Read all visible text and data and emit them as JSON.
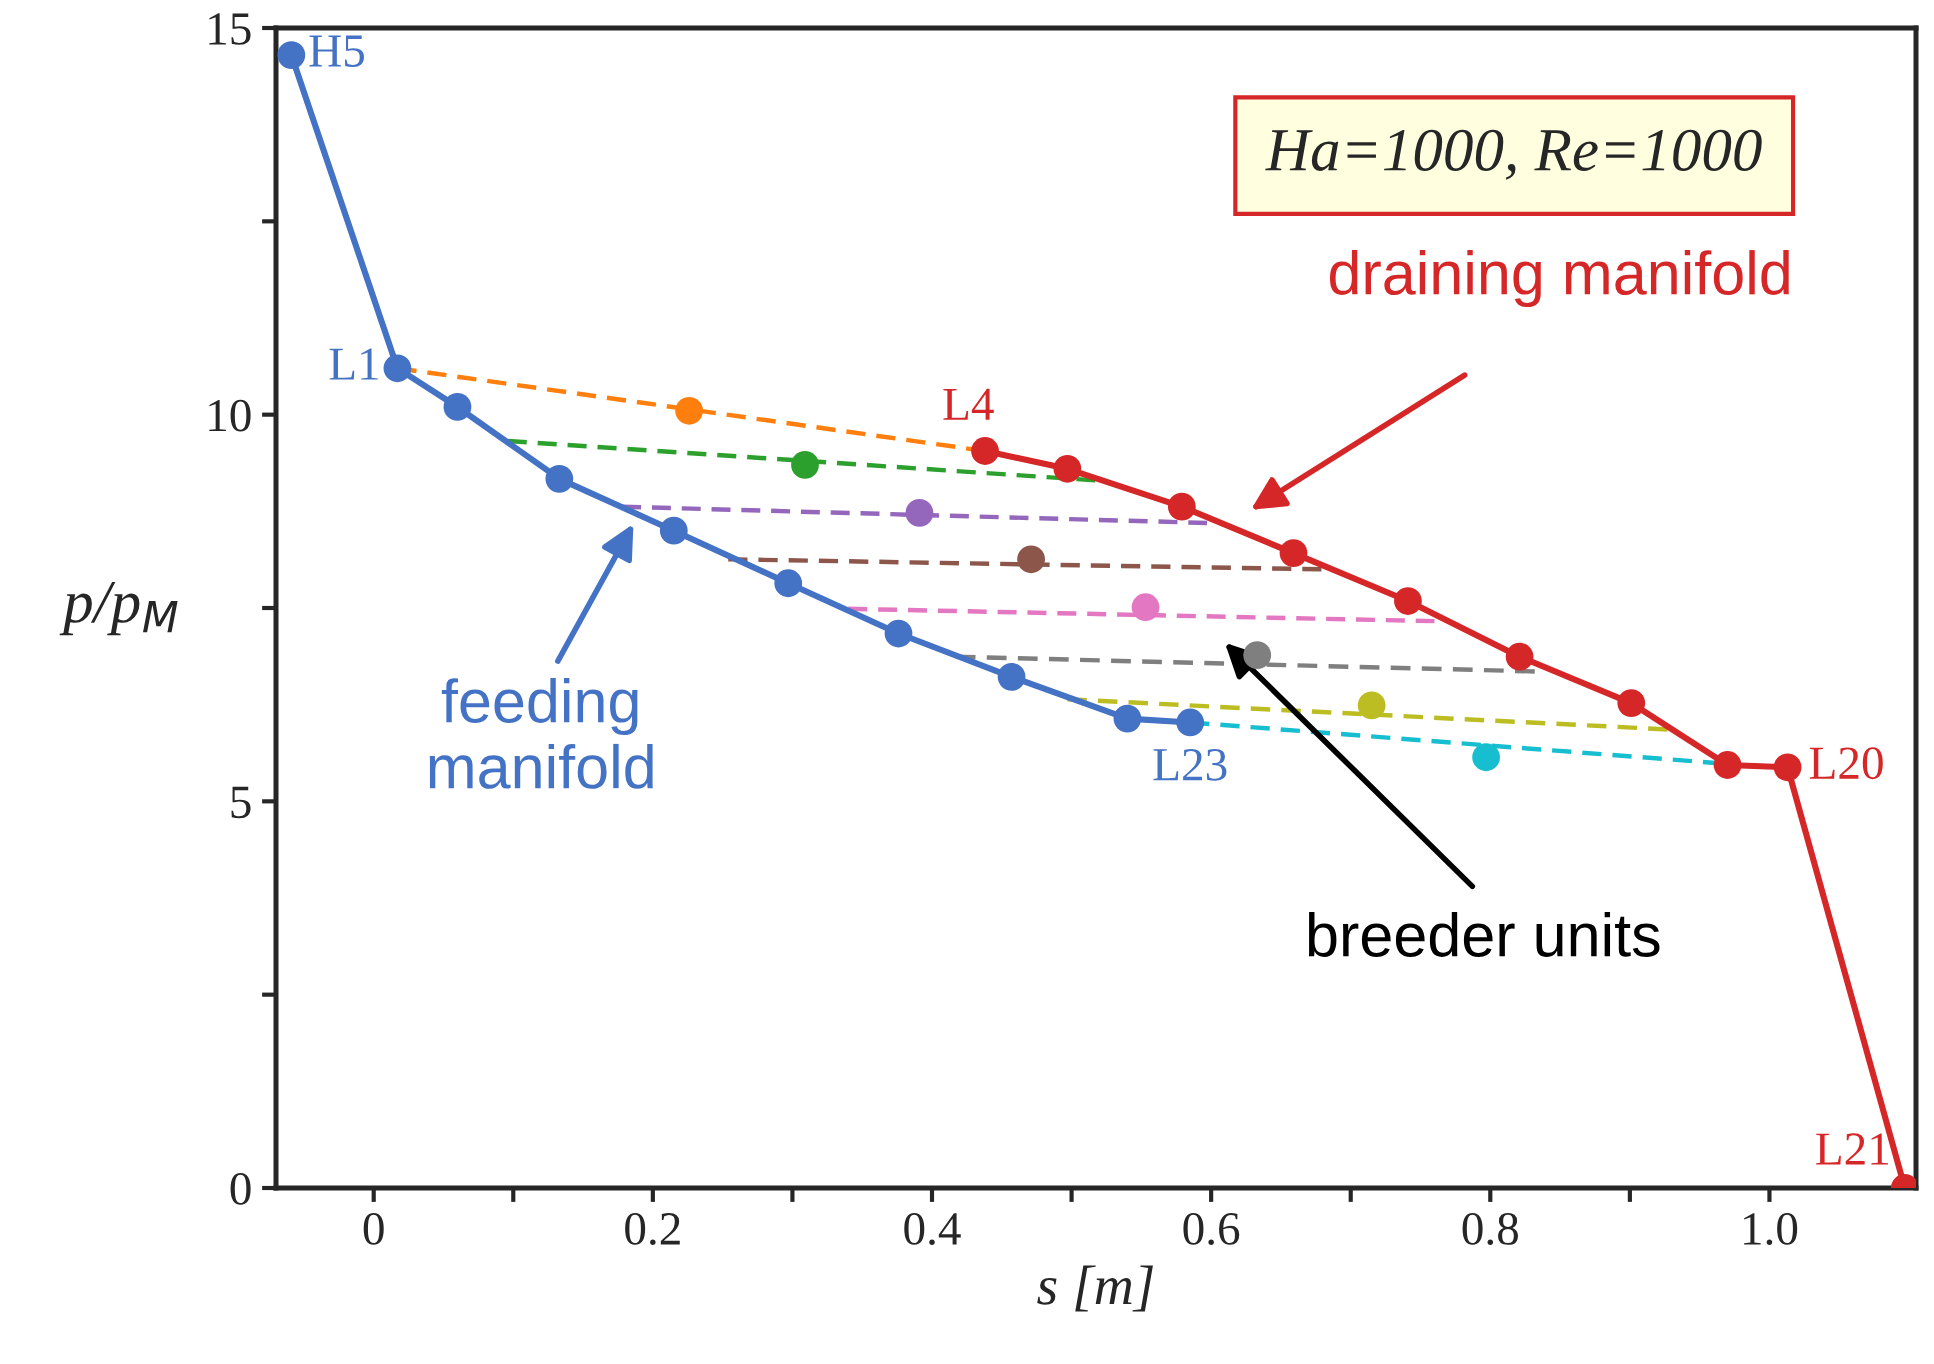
{
  "chart_data": {
    "type": "line",
    "xlabel": "s [m]",
    "ylabel": "p/p$_{M}$",
    "xlim": [
      -0.07,
      1.105
    ],
    "ylim": [
      0,
      15
    ],
    "xticks": [
      {
        "value": 0,
        "label": "0"
      },
      {
        "value": 0.1,
        "label": null
      },
      0.2,
      {
        "value": 0.3,
        "label": null
      },
      0.4,
      {
        "value": 0.5,
        "label": null
      },
      0.6,
      {
        "value": 0.7,
        "label": null
      },
      0.8,
      {
        "value": 0.9,
        "label": null
      },
      {
        "value": 1.0,
        "label": "1.0"
      }
    ],
    "yticks": [
      0,
      {
        "value": 2.5,
        "label": null
      },
      5,
      {
        "value": 7.5,
        "label": null
      },
      10,
      {
        "value": 12.5,
        "label": null
      },
      15
    ],
    "grid": false,
    "legend": false,
    "series": [
      {
        "color": "#4472c4",
        "marker": "circle",
        "line_style": "solid",
        "x": [
          -0.059,
          0.017,
          0.06,
          0.133,
          0.215,
          0.297,
          0.376,
          0.457,
          0.54,
          0.585
        ],
        "values": [
          14.65,
          10.6,
          10.1,
          9.17,
          8.5,
          7.82,
          7.17,
          6.61,
          6.07,
          6.02
        ]
      },
      {
        "color": "#d62728",
        "marker": "circle",
        "line_style": "solid",
        "x": [
          0.438,
          0.497,
          0.579,
          0.659,
          0.741,
          0.821,
          0.901,
          0.97,
          1.013,
          1.097
        ],
        "values": [
          9.53,
          9.3,
          8.81,
          8.21,
          7.59,
          6.87,
          6.27,
          5.47,
          5.44,
          0
        ]
      },
      {
        "type": "line",
        "color": "#ff7f0e",
        "marker": "none",
        "line_style": "dashed",
        "x": [
          0.017,
          0.438
        ],
        "values": [
          10.6,
          9.53
        ]
      },
      {
        "type": "line",
        "color": "#2ca02c",
        "marker": "none",
        "line_style": "dashed",
        "x": [
          0.096,
          0.517
        ],
        "values": [
          9.66,
          9.15
        ]
      },
      {
        "type": "line",
        "color": "#9467bd",
        "marker": "none",
        "line_style": "dashed",
        "x": [
          0.178,
          0.597
        ],
        "values": [
          8.81,
          8.6
        ]
      },
      {
        "type": "line",
        "color": "#8c564b",
        "marker": "none",
        "line_style": "dashed",
        "x": [
          0.254,
          0.679
        ],
        "values": [
          8.13,
          8.0
        ]
      },
      {
        "type": "line",
        "color": "#e377c2",
        "marker": "none",
        "line_style": "dashed",
        "x": [
          0.34,
          0.76
        ],
        "values": [
          7.49,
          7.33
        ]
      },
      {
        "type": "line",
        "color": "#7f7f7f",
        "marker": "none",
        "line_style": "dashed",
        "x": [
          0.417,
          0.832
        ],
        "values": [
          6.87,
          6.68
        ]
      },
      {
        "type": "line",
        "color": "#bcbd22",
        "marker": "none",
        "line_style": "dashed",
        "x": [
          0.497,
          0.927
        ],
        "values": [
          6.32,
          5.93
        ]
      },
      {
        "type": "line",
        "color": "#17becf",
        "marker": "none",
        "line_style": "dashed",
        "x": [
          0.585,
          0.966
        ],
        "values": [
          6.02,
          5.49
        ]
      },
      {
        "type": "scatter",
        "marker": "circle",
        "x": [
          0.226,
          0.309,
          0.391,
          0.471,
          0.553,
          0.633,
          0.715,
          0.797
        ],
        "values": [
          10.05,
          9.35,
          8.73,
          8.13,
          7.51,
          6.89,
          6.24,
          5.57
        ],
        "colors": [
          "#ff7f0e",
          "#2ca02c",
          "#9467bd",
          "#8c564b",
          "#e377c2",
          "#7f7f7f",
          "#bcbd22",
          "#17becf"
        ]
      }
    ],
    "annotations": [
      {
        "text": "H5",
        "x": -0.059,
        "y": 14.65
      },
      {
        "text": "L1",
        "x": 0.017,
        "y": 10.6
      },
      {
        "text": "L4",
        "x": 0.438,
        "y": 9.53
      },
      {
        "text": "L23",
        "x": 0.585,
        "y": 6.02
      },
      {
        "text": "L20",
        "x": 1.013,
        "y": 5.44
      },
      {
        "text": "L21",
        "x": 1.097,
        "y": 0
      },
      {
        "text": "feeding\nmanifold",
        "x": 0.188,
        "y": 8.65
      },
      "draining manifold",
      "breeder units",
      "Ha=1000, Re=1000"
    ]
  }
}
